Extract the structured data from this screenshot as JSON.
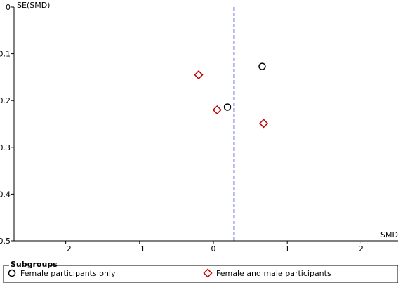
{
  "chart_data": {
    "type": "scatter",
    "subtype": "funnel-plot",
    "xlabel": "SMD",
    "ylabel": "SE(SMD)",
    "xlim": [
      -2.7,
      2.5
    ],
    "ylim": [
      0,
      0.5
    ],
    "y_inverted": true,
    "x_ticks": [
      -2,
      -1,
      0,
      1,
      2
    ],
    "x_tick_labels": [
      "−2",
      "−1",
      "0",
      "1",
      "2"
    ],
    "y_ticks": [
      0,
      0.1,
      0.2,
      0.3,
      0.4,
      0.5
    ],
    "y_tick_labels": [
      "0",
      "0.1",
      "0.2",
      "0.3",
      "0.4",
      "0.5"
    ],
    "reference_line": {
      "x": 0.28,
      "style": "dashed",
      "color": "#0000cc"
    },
    "grid": false,
    "legend": {
      "title": "Subgroups",
      "placement": "bottom"
    },
    "series": [
      {
        "name": "Female participants only",
        "marker": "circle",
        "color": "#000000",
        "points": [
          {
            "x": 0.66,
            "y": 0.127
          },
          {
            "x": 0.19,
            "y": 0.214
          }
        ]
      },
      {
        "name": "Female and male participants",
        "marker": "diamond",
        "color": "#c00000",
        "points": [
          {
            "x": -0.2,
            "y": 0.145
          },
          {
            "x": 0.05,
            "y": 0.22
          },
          {
            "x": 0.68,
            "y": 0.249
          }
        ]
      }
    ]
  }
}
